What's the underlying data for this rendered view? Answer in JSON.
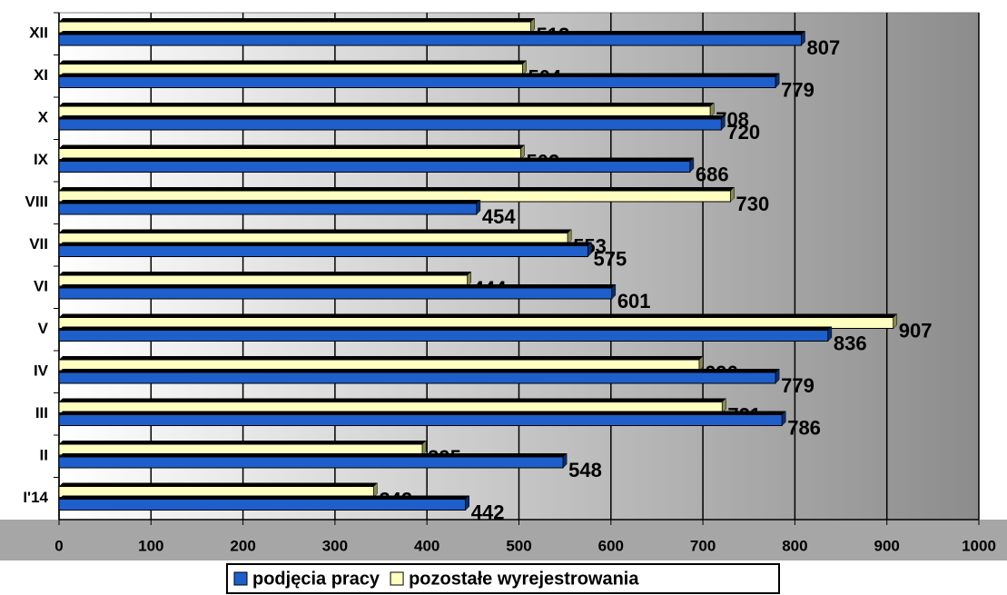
{
  "chart_data": {
    "type": "barh",
    "categories": [
      "I'14",
      "II",
      "III",
      "IV",
      "V",
      "VI",
      "VII",
      "VIII",
      "IX",
      "X",
      "XI",
      "XII"
    ],
    "series": [
      {
        "name": "podjęcia pracy",
        "color": "#1f5fcc",
        "values": [
          442,
          548,
          786,
          779,
          836,
          601,
          575,
          454,
          686,
          720,
          779,
          807
        ]
      },
      {
        "name": "pozostałe wyrejestrowania",
        "color": "#ffffc0",
        "values": [
          342,
          395,
          721,
          696,
          907,
          444,
          553,
          730,
          502,
          708,
          504,
          513
        ]
      }
    ],
    "xlim": [
      0,
      1000
    ],
    "xticks": [
      0,
      100,
      200,
      300,
      400,
      500,
      600,
      700,
      800,
      900,
      1000
    ],
    "grid": true
  }
}
